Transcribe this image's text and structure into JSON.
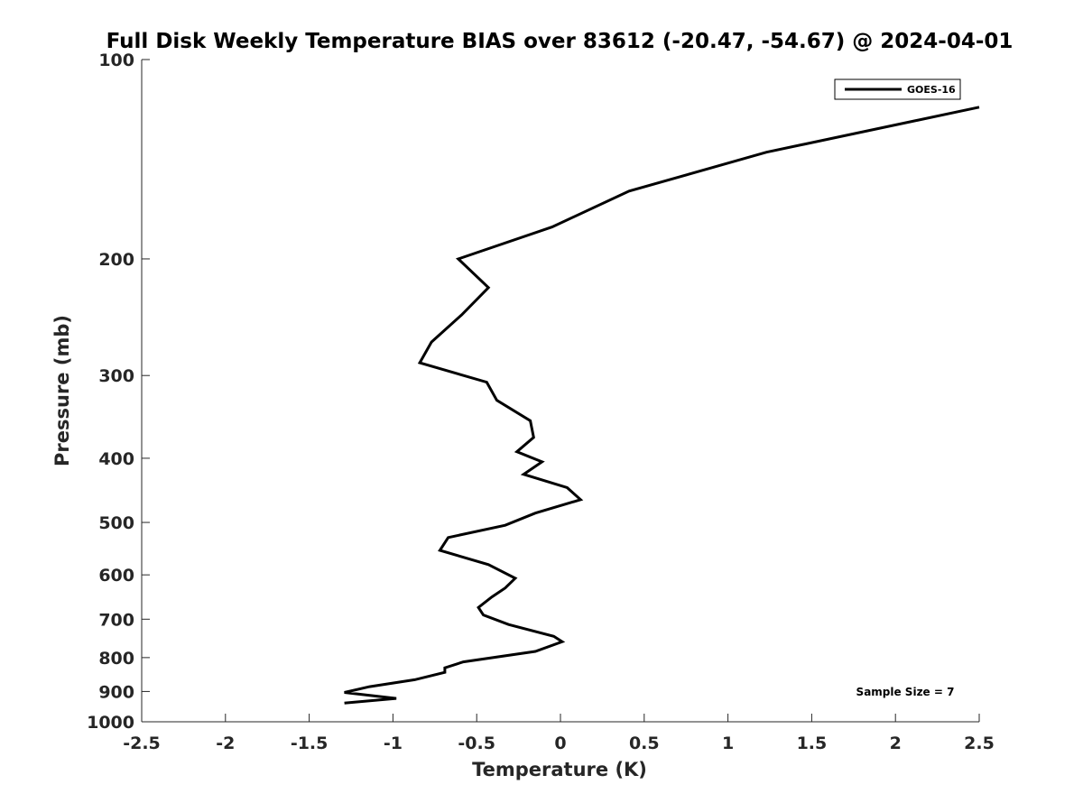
{
  "chart_data": {
    "type": "line",
    "title": "Full Disk Weekly Temperature BIAS over 83612 (-20.47, -54.67) @ 2024-04-01",
    "xlabel": "Temperature (K)",
    "ylabel": "Pressure (mb)",
    "xlim": [
      -2.5,
      2.5
    ],
    "ylim": [
      100,
      1000
    ],
    "y_scale": "log",
    "y_reversed": true,
    "x_ticks": [
      -2.5,
      -2,
      -1.5,
      -1,
      -0.5,
      0,
      0.5,
      1,
      1.5,
      2,
      2.5
    ],
    "x_tick_labels": [
      "-2.5",
      "-2",
      "-1.5",
      "-1",
      "-0.5",
      "0",
      "0.5",
      "1",
      "1.5",
      "2",
      "2.5"
    ],
    "y_ticks": [
      100,
      200,
      300,
      400,
      500,
      600,
      700,
      800,
      900,
      1000
    ],
    "y_tick_labels": [
      "100",
      "200",
      "300",
      "400",
      "500",
      "600",
      "700",
      "800",
      "900",
      "1000"
    ],
    "grid": false,
    "legend_position": "top-right",
    "series_color": "#000000",
    "series": [
      {
        "name": "GOES-16",
        "points": [
          [
            2.5,
            118
          ],
          [
            1.23,
            138
          ],
          [
            0.41,
            158
          ],
          [
            -0.05,
            179
          ],
          [
            -0.61,
            200
          ],
          [
            -0.43,
            221
          ],
          [
            -0.59,
            243
          ],
          [
            -0.77,
            267
          ],
          [
            -0.84,
            287
          ],
          [
            -0.44,
            307
          ],
          [
            -0.38,
            327
          ],
          [
            -0.18,
            351
          ],
          [
            -0.16,
            372
          ],
          [
            -0.26,
            391
          ],
          [
            -0.11,
            405
          ],
          [
            -0.22,
            423
          ],
          [
            0.04,
            443
          ],
          [
            0.12,
            462
          ],
          [
            -0.15,
            484
          ],
          [
            -0.33,
            505
          ],
          [
            -0.67,
            527
          ],
          [
            -0.72,
            551
          ],
          [
            -0.43,
            579
          ],
          [
            -0.27,
            607
          ],
          [
            -0.33,
            628
          ],
          [
            -0.41,
            648
          ],
          [
            -0.49,
            672
          ],
          [
            -0.46,
            690
          ],
          [
            -0.31,
            713
          ],
          [
            -0.04,
            743
          ],
          [
            0.01,
            757
          ],
          [
            -0.15,
            783
          ],
          [
            -0.58,
            812
          ],
          [
            -0.69,
            829
          ],
          [
            -0.69,
            842
          ],
          [
            -0.87,
            864
          ],
          [
            -1.14,
            885
          ],
          [
            -1.29,
            903
          ],
          [
            -0.98,
            922
          ],
          [
            -1.29,
            937
          ]
        ]
      }
    ],
    "annotations": [
      "Sample Size = 7"
    ]
  }
}
